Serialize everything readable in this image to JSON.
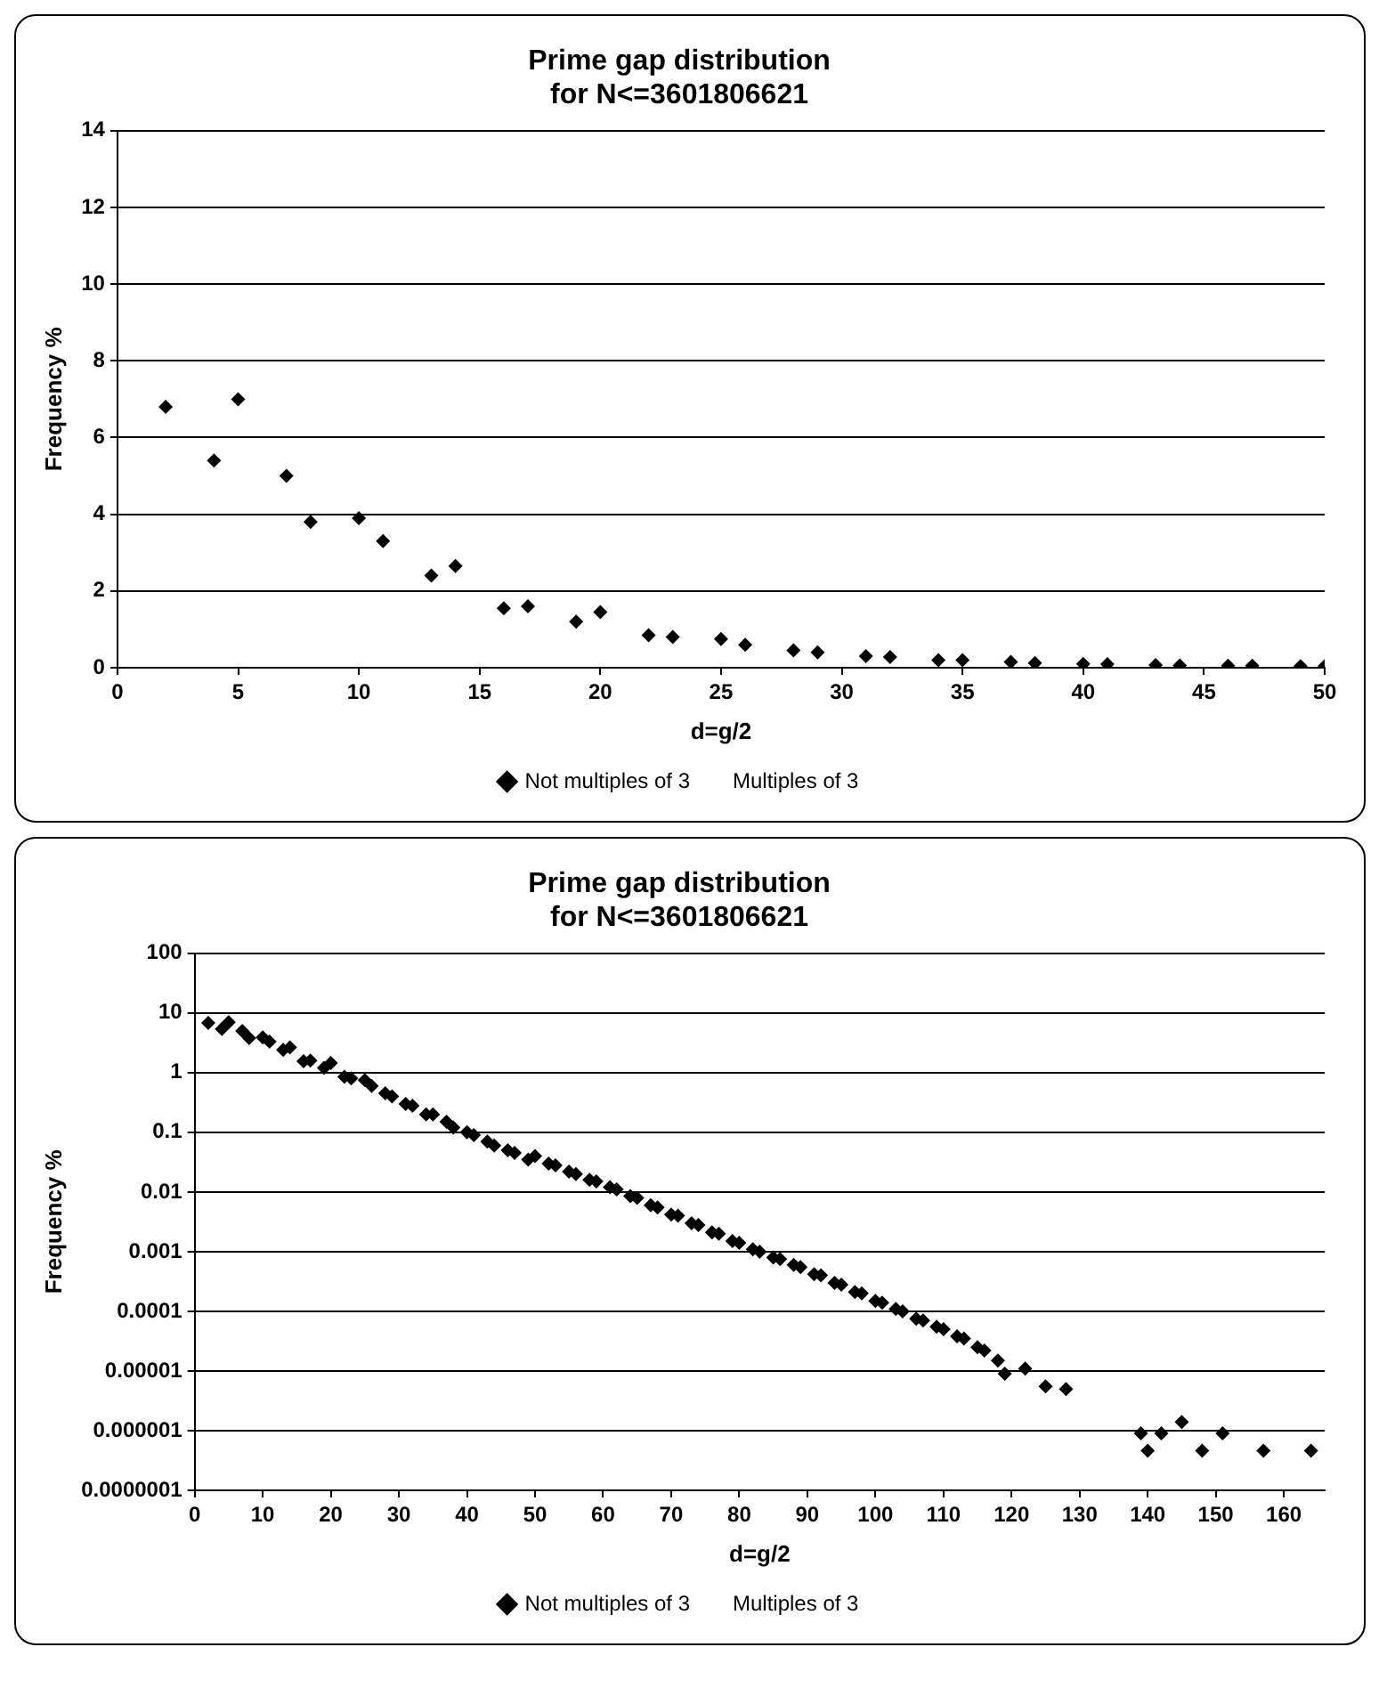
{
  "chart_data": [
    {
      "type": "scatter",
      "title": "Prime gap distribution\nfor N<=3601806621",
      "xlabel": "d=g/2",
      "ylabel": "Frequency %",
      "xlim": [
        0,
        50
      ],
      "xticks": [
        0,
        5,
        10,
        15,
        20,
        25,
        30,
        35,
        40,
        45,
        50
      ],
      "ylim": [
        0,
        14
      ],
      "yticks": [
        0,
        2,
        4,
        6,
        8,
        10,
        12,
        14
      ],
      "grid": "y",
      "legend": "bottom",
      "marker": "diamond",
      "series": [
        {
          "name": "Not multiples of 3",
          "color": "#000000",
          "x": [
            2,
            4,
            5,
            7,
            8,
            10,
            11,
            13,
            14,
            16,
            17,
            19,
            20,
            22,
            23,
            25,
            26,
            28,
            29,
            31,
            32,
            34,
            35,
            37,
            38,
            40,
            41,
            43,
            44,
            46,
            47,
            49,
            50
          ],
          "values": [
            6.8,
            5.4,
            7.0,
            5.0,
            3.8,
            3.9,
            3.3,
            2.4,
            2.65,
            1.55,
            1.6,
            1.2,
            1.45,
            0.85,
            0.8,
            0.75,
            0.6,
            0.45,
            0.4,
            0.3,
            0.28,
            0.2,
            0.2,
            0.15,
            0.12,
            0.1,
            0.09,
            0.07,
            0.06,
            0.05,
            0.05,
            0.04,
            0.04
          ]
        },
        {
          "name": "Multiples of 3",
          "color": "#000000",
          "marker": "none"
        }
      ]
    },
    {
      "type": "scatter",
      "title": "Prime gap distribution\nfor N<=3601806621",
      "xlabel": "d=g/2",
      "ylabel": "Frequency %",
      "log": "y",
      "xlim": [
        0,
        166
      ],
      "xticks": [
        0,
        10,
        20,
        30,
        40,
        50,
        60,
        70,
        80,
        90,
        100,
        110,
        120,
        130,
        140,
        150,
        160
      ],
      "ylim": [
        1e-07,
        100
      ],
      "yticks": [
        {
          "value": 1e-07,
          "label": "0.0000001"
        },
        {
          "value": 1e-06,
          "label": "0.000001"
        },
        {
          "value": 1e-05,
          "label": "0.00001"
        },
        0.0001,
        0.001,
        0.01,
        0.1,
        1,
        10,
        100
      ],
      "grid": "y",
      "legend": "bottom",
      "marker": "diamond",
      "series": [
        {
          "name": "Not multiples of 3",
          "color": "#000000",
          "x": [
            2,
            4,
            5,
            7,
            8,
            10,
            11,
            13,
            14,
            16,
            17,
            19,
            20,
            22,
            23,
            25,
            26,
            28,
            29,
            31,
            32,
            34,
            35,
            37,
            38,
            40,
            41,
            43,
            44,
            46,
            47,
            49,
            50,
            52,
            53,
            55,
            56,
            58,
            59,
            61,
            62,
            64,
            65,
            67,
            68,
            70,
            71,
            73,
            74,
            76,
            77,
            79,
            80,
            82,
            83,
            85,
            86,
            88,
            89,
            91,
            92,
            94,
            95,
            97,
            98,
            100,
            101,
            103,
            104,
            106,
            107,
            109,
            110,
            112,
            113,
            115,
            116,
            118,
            119,
            122,
            125,
            128,
            139,
            140,
            142,
            145,
            148,
            151,
            157,
            164
          ],
          "values": [
            6.8,
            5.4,
            7.0,
            5.0,
            3.8,
            3.9,
            3.3,
            2.4,
            2.65,
            1.55,
            1.6,
            1.2,
            1.45,
            0.85,
            0.8,
            0.75,
            0.6,
            0.45,
            0.4,
            0.3,
            0.28,
            0.2,
            0.2,
            0.15,
            0.12,
            0.1,
            0.09,
            0.07,
            0.06,
            0.05,
            0.045,
            0.035,
            0.04,
            0.03,
            0.028,
            0.022,
            0.02,
            0.016,
            0.015,
            0.012,
            0.011,
            0.0085,
            0.008,
            0.006,
            0.0055,
            0.0042,
            0.004,
            0.003,
            0.0028,
            0.0021,
            0.002,
            0.0015,
            0.0014,
            0.0011,
            0.001,
            0.0008,
            0.00075,
            0.0006,
            0.00055,
            0.00042,
            0.0004,
            0.0003,
            0.00028,
            0.00021,
            0.0002,
            0.00015,
            0.00014,
            0.00011,
            0.0001,
            7.5e-05,
            7e-05,
            5.5e-05,
            5e-05,
            3.8e-05,
            3.5e-05,
            2.5e-05,
            2.2e-05,
            1.5e-05,
            9e-06,
            1.1e-05,
            5.5e-06,
            5e-06,
            9e-07,
            4.6e-07,
            9e-07,
            1.4e-06,
            4.6e-07,
            9e-07,
            4.6e-07,
            4.6e-07
          ]
        },
        {
          "name": "Multiples of 3",
          "color": "#000000",
          "marker": "none"
        }
      ]
    }
  ]
}
